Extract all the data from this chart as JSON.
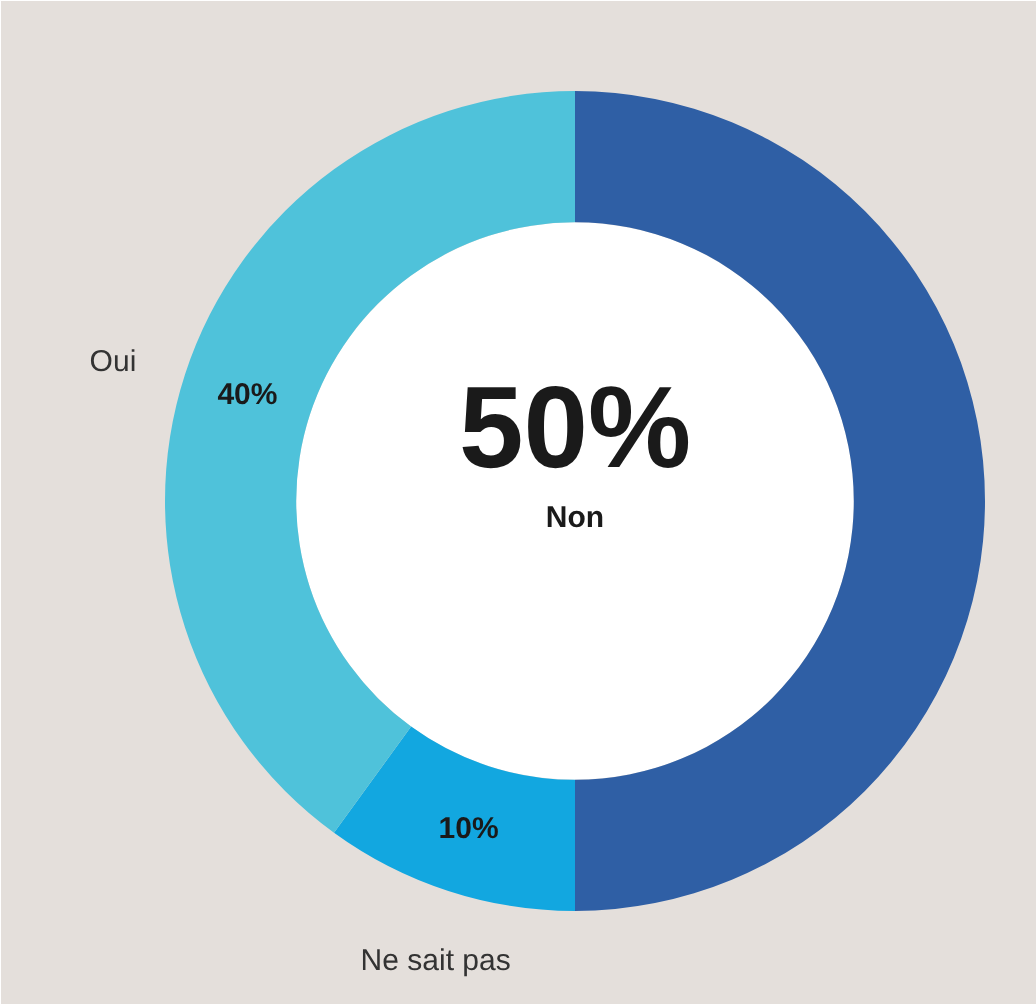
{
  "chart_data": {
    "type": "donut",
    "categories": [
      "Non",
      "Ne sait pas",
      "Oui"
    ],
    "values": [
      50,
      10,
      40
    ],
    "colors": [
      "#2f5fa5",
      "#12a7e0",
      "#4fc2da"
    ],
    "value_labels": [
      "50%",
      "10%",
      "40%"
    ]
  }
}
